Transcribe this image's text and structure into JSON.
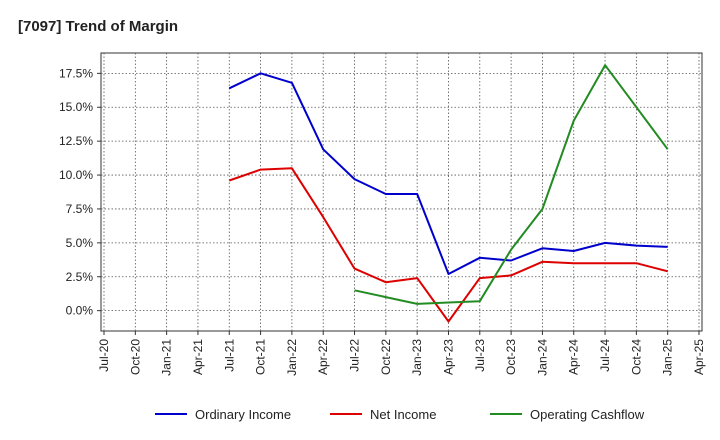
{
  "chart_data": {
    "type": "line",
    "title": "[7097]  Trend of Margin",
    "xlabel": "",
    "ylabel": "",
    "ylim": [
      -1.5,
      19.0
    ],
    "y_ticks": [
      0,
      2.5,
      5,
      7.5,
      10,
      12.5,
      15,
      17.5
    ],
    "y_tick_labels": [
      "0.0%",
      "2.5%",
      "5.0%",
      "7.5%",
      "10.0%",
      "12.5%",
      "15.0%",
      "17.5%"
    ],
    "x_tick_labels": [
      "Jul-20",
      "Oct-20",
      "Jan-21",
      "Apr-21",
      "Jul-21",
      "Oct-21",
      "Jan-22",
      "Apr-22",
      "Jul-22",
      "Oct-22",
      "Jan-23",
      "Apr-23",
      "Jul-23",
      "Oct-23",
      "Jan-24",
      "Apr-24",
      "Jul-24",
      "Oct-24",
      "Jan-25",
      "Apr-25"
    ],
    "grid": true,
    "legend_position": "bottom",
    "series": [
      {
        "name": "Ordinary Income",
        "color": "#0000cc",
        "start_index": 4,
        "values": [
          16.4,
          17.5,
          16.8,
          11.9,
          9.7,
          8.6,
          8.6,
          2.7,
          3.9,
          3.7,
          4.6,
          4.4,
          5.0,
          4.8,
          4.7
        ]
      },
      {
        "name": "Net Income",
        "color": "#dd0000",
        "start_index": 4,
        "values": [
          9.6,
          10.4,
          10.5,
          6.9,
          3.1,
          2.1,
          2.4,
          -0.8,
          2.4,
          2.6,
          3.6,
          3.5,
          3.5,
          3.5,
          2.9
        ]
      },
      {
        "name": "Operating Cashflow",
        "color": "#228b22",
        "start_index": 8,
        "values": [
          1.5,
          1.0,
          0.5,
          0.6,
          0.7,
          4.5,
          7.5,
          14.0,
          18.1,
          15.0,
          11.9
        ]
      }
    ]
  }
}
